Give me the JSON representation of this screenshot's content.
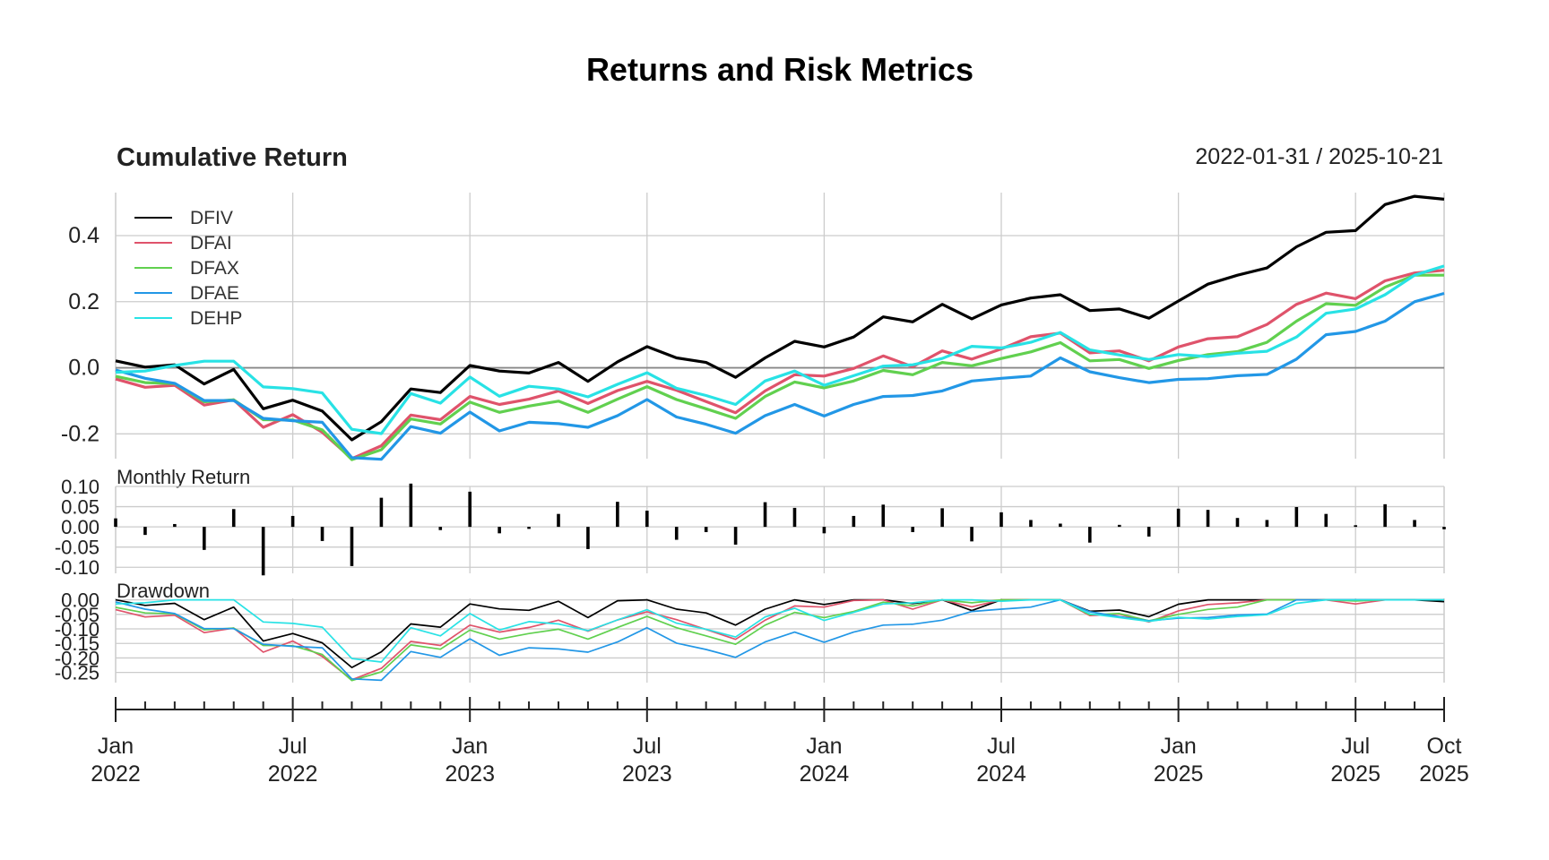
{
  "chart_data": {
    "type": "line",
    "title": "Returns and Risk Metrics",
    "date_range": "2022-01-31 / 2025-10-21",
    "x": [
      "2022-01",
      "2022-02",
      "2022-03",
      "2022-04",
      "2022-05",
      "2022-06",
      "2022-07",
      "2022-08",
      "2022-09",
      "2022-10",
      "2022-11",
      "2022-12",
      "2023-01",
      "2023-02",
      "2023-03",
      "2023-04",
      "2023-05",
      "2023-06",
      "2023-07",
      "2023-08",
      "2023-09",
      "2023-10",
      "2023-11",
      "2023-12",
      "2024-01",
      "2024-02",
      "2024-03",
      "2024-04",
      "2024-05",
      "2024-06",
      "2024-07",
      "2024-08",
      "2024-09",
      "2024-10",
      "2024-11",
      "2024-12",
      "2025-01",
      "2025-02",
      "2025-03",
      "2025-04",
      "2025-05",
      "2025-06",
      "2025-07",
      "2025-08",
      "2025-09",
      "2025-10"
    ],
    "x_tick_labels": [
      {
        "date": "2022-01",
        "month": "Jan",
        "year": "2022"
      },
      {
        "date": "2022-07",
        "month": "Jul",
        "year": "2022"
      },
      {
        "date": "2023-01",
        "month": "Jan",
        "year": "2023"
      },
      {
        "date": "2023-07",
        "month": "Jul",
        "year": "2023"
      },
      {
        "date": "2024-01",
        "month": "Jan",
        "year": "2024"
      },
      {
        "date": "2024-07",
        "month": "Jul",
        "year": "2024"
      },
      {
        "date": "2025-01",
        "month": "Jan",
        "year": "2025"
      },
      {
        "date": "2025-07",
        "month": "Jul",
        "year": "2025"
      },
      {
        "date": "2025-10",
        "month": "Oct",
        "year": "2025"
      }
    ],
    "legend_position": "top-left",
    "grid": true,
    "panels": [
      {
        "title": "Cumulative Return",
        "ylim": [
          -0.275,
          0.53
        ],
        "yticks": [
          -0.2,
          0.0,
          0.2,
          0.4
        ],
        "ytick_labels": [
          "-0.2",
          "0.0",
          "0.2",
          "0.4"
        ],
        "series": [
          {
            "name": "DFIV",
            "color": "#000000",
            "values": [
              0.021,
              0.002,
              0.009,
              -0.049,
              -0.005,
              -0.124,
              -0.098,
              -0.131,
              -0.218,
              -0.163,
              -0.064,
              -0.075,
              0.007,
              -0.01,
              -0.016,
              0.016,
              -0.041,
              0.018,
              0.064,
              0.03,
              0.016,
              -0.029,
              0.03,
              0.08,
              0.063,
              0.093,
              0.154,
              0.139,
              0.192,
              0.148,
              0.19,
              0.211,
              0.221,
              0.173,
              0.178,
              0.15,
              0.202,
              0.253,
              0.28,
              0.302,
              0.366,
              0.41,
              0.415,
              0.494,
              0.519,
              0.51
            ]
          },
          {
            "name": "DFAI",
            "color": "#DF536B",
            "values": [
              -0.034,
              -0.059,
              -0.053,
              -0.113,
              -0.097,
              -0.18,
              -0.142,
              -0.195,
              -0.275,
              -0.236,
              -0.143,
              -0.157,
              -0.087,
              -0.111,
              -0.095,
              -0.07,
              -0.108,
              -0.069,
              -0.041,
              -0.068,
              -0.102,
              -0.136,
              -0.07,
              -0.021,
              -0.025,
              -0.002,
              0.036,
              0.003,
              0.051,
              0.026,
              0.057,
              0.094,
              0.105,
              0.045,
              0.051,
              0.021,
              0.063,
              0.088,
              0.094,
              0.131,
              0.192,
              0.226,
              0.209,
              0.263,
              0.287,
              0.295
            ]
          },
          {
            "name": "DFAX",
            "color": "#61D04F",
            "values": [
              -0.026,
              -0.045,
              -0.048,
              -0.103,
              -0.097,
              -0.157,
              -0.158,
              -0.188,
              -0.278,
              -0.248,
              -0.155,
              -0.17,
              -0.104,
              -0.135,
              -0.116,
              -0.101,
              -0.135,
              -0.095,
              -0.057,
              -0.096,
              -0.124,
              -0.153,
              -0.087,
              -0.043,
              -0.061,
              -0.04,
              -0.008,
              -0.021,
              0.016,
              0.006,
              0.028,
              0.048,
              0.076,
              0.021,
              0.025,
              -0.002,
              0.022,
              0.04,
              0.049,
              0.077,
              0.141,
              0.194,
              0.189,
              0.244,
              0.28,
              0.28
            ]
          },
          {
            "name": "DFAE",
            "color": "#2297E6",
            "values": [
              -0.007,
              -0.032,
              -0.047,
              -0.099,
              -0.099,
              -0.153,
              -0.16,
              -0.165,
              -0.272,
              -0.277,
              -0.178,
              -0.198,
              -0.134,
              -0.191,
              -0.165,
              -0.169,
              -0.18,
              -0.145,
              -0.096,
              -0.149,
              -0.171,
              -0.198,
              -0.145,
              -0.111,
              -0.146,
              -0.111,
              -0.087,
              -0.084,
              -0.07,
              -0.04,
              -0.032,
              -0.025,
              0.03,
              -0.012,
              -0.03,
              -0.045,
              -0.035,
              -0.033,
              -0.024,
              -0.02,
              0.026,
              0.1,
              0.11,
              0.141,
              0.2,
              0.225
            ]
          },
          {
            "name": "DEHP",
            "color": "#28E2E5",
            "values": [
              -0.014,
              -0.01,
              0.007,
              0.02,
              0.02,
              -0.058,
              -0.063,
              -0.076,
              -0.186,
              -0.199,
              -0.078,
              -0.107,
              -0.028,
              -0.086,
              -0.056,
              -0.064,
              -0.088,
              -0.05,
              -0.015,
              -0.062,
              -0.084,
              -0.111,
              -0.04,
              -0.01,
              -0.053,
              -0.024,
              0.005,
              0.009,
              0.028,
              0.065,
              0.06,
              0.077,
              0.107,
              0.054,
              0.039,
              0.025,
              0.04,
              0.034,
              0.044,
              0.05,
              0.093,
              0.165,
              0.178,
              0.221,
              0.28,
              0.308
            ]
          }
        ]
      },
      {
        "title": "Monthly Return",
        "type": "bar",
        "ylim": [
          -0.115,
          0.1
        ],
        "yticks": [
          0.1,
          0.05,
          0.0,
          -0.05,
          -0.1
        ],
        "ytick_labels": [
          "0.10",
          "0.05",
          "0.00",
          "-0.05",
          "-0.10"
        ],
        "series": [
          {
            "name": "DFIV",
            "color": "#000000",
            "values": [
              0.021,
              -0.02,
              0.007,
              -0.057,
              0.044,
              -0.12,
              0.027,
              -0.035,
              -0.097,
              0.072,
              0.107,
              -0.008,
              0.087,
              -0.016,
              -0.005,
              0.032,
              -0.055,
              0.062,
              0.04,
              -0.032,
              -0.013,
              -0.044,
              0.061,
              0.047,
              -0.016,
              0.027,
              0.055,
              -0.013,
              0.046,
              -0.036,
              0.036,
              0.017,
              0.008,
              -0.039,
              0.005,
              -0.024,
              0.045,
              0.042,
              0.022,
              0.017,
              0.049,
              0.032,
              0.004,
              0.056,
              0.017,
              -0.006
            ]
          }
        ]
      },
      {
        "title": "Drawdown",
        "ylim": [
          -0.285,
          0.005
        ],
        "yticks": [
          0.0,
          -0.05,
          -0.1,
          -0.15,
          -0.2,
          -0.25
        ],
        "ytick_labels": [
          "0.00",
          "-0.05",
          "-0.10",
          "-0.15",
          "-0.20",
          "-0.25"
        ],
        "series": [
          {
            "name": "DFIV",
            "color": "#000000",
            "values": [
              0.0,
              -0.019,
              -0.012,
              -0.068,
              -0.025,
              -0.142,
              -0.116,
              -0.148,
              -0.233,
              -0.179,
              -0.083,
              -0.094,
              -0.014,
              -0.031,
              -0.036,
              -0.005,
              -0.061,
              -0.003,
              0.0,
              -0.032,
              -0.045,
              -0.087,
              -0.032,
              0.0,
              -0.016,
              0.0,
              0.0,
              -0.013,
              0.0,
              -0.037,
              0.0,
              0.0,
              0.0,
              -0.039,
              -0.035,
              -0.058,
              -0.015,
              0.0,
              0.0,
              0.0,
              0.0,
              0.0,
              0.0,
              0.0,
              0.0,
              -0.006
            ]
          },
          {
            "name": "DFAI",
            "color": "#DF536B",
            "values": [
              -0.034,
              -0.059,
              -0.053,
              -0.113,
              -0.097,
              -0.18,
              -0.142,
              -0.195,
              -0.275,
              -0.236,
              -0.143,
              -0.157,
              -0.087,
              -0.111,
              -0.095,
              -0.07,
              -0.108,
              -0.069,
              -0.041,
              -0.068,
              -0.102,
              -0.136,
              -0.07,
              -0.021,
              -0.025,
              -0.002,
              0.0,
              -0.032,
              0.0,
              -0.024,
              0.0,
              0.0,
              0.0,
              -0.054,
              -0.049,
              -0.076,
              -0.038,
              -0.016,
              -0.01,
              0.0,
              0.0,
              0.0,
              -0.014,
              0.0,
              0.0,
              0.0
            ]
          },
          {
            "name": "DFAX",
            "color": "#61D04F",
            "values": [
              -0.026,
              -0.045,
              -0.048,
              -0.103,
              -0.097,
              -0.157,
              -0.158,
              -0.188,
              -0.278,
              -0.248,
              -0.155,
              -0.17,
              -0.104,
              -0.135,
              -0.116,
              -0.101,
              -0.135,
              -0.095,
              -0.057,
              -0.096,
              -0.124,
              -0.153,
              -0.087,
              -0.043,
              -0.061,
              -0.04,
              -0.008,
              -0.021,
              0.0,
              -0.01,
              0.0,
              0.0,
              0.0,
              -0.051,
              -0.047,
              -0.072,
              -0.05,
              -0.033,
              -0.025,
              0.0,
              0.0,
              0.0,
              -0.004,
              0.0,
              0.0,
              0.0
            ]
          },
          {
            "name": "DFAE",
            "color": "#2297E6",
            "values": [
              -0.007,
              -0.032,
              -0.047,
              -0.099,
              -0.099,
              -0.153,
              -0.16,
              -0.165,
              -0.272,
              -0.277,
              -0.178,
              -0.198,
              -0.134,
              -0.191,
              -0.165,
              -0.169,
              -0.18,
              -0.145,
              -0.096,
              -0.149,
              -0.171,
              -0.198,
              -0.145,
              -0.111,
              -0.146,
              -0.111,
              -0.087,
              -0.084,
              -0.07,
              -0.04,
              -0.032,
              -0.025,
              0.0,
              -0.041,
              -0.058,
              -0.072,
              -0.063,
              -0.061,
              -0.052,
              -0.049,
              0.0,
              0.0,
              0.0,
              0.0,
              0.0,
              0.0
            ]
          },
          {
            "name": "DEHP",
            "color": "#28E2E5",
            "values": [
              -0.014,
              -0.01,
              0.0,
              0.0,
              0.0,
              -0.076,
              -0.081,
              -0.094,
              -0.202,
              -0.214,
              -0.096,
              -0.124,
              -0.047,
              -0.104,
              -0.075,
              -0.083,
              -0.106,
              -0.069,
              -0.034,
              -0.08,
              -0.101,
              -0.128,
              -0.059,
              -0.029,
              -0.071,
              -0.043,
              -0.014,
              -0.01,
              0.0,
              0.0,
              -0.005,
              0.0,
              0.0,
              -0.048,
              -0.061,
              -0.074,
              -0.06,
              -0.066,
              -0.057,
              -0.051,
              -0.012,
              0.0,
              0.0,
              0.0,
              0.0,
              0.0
            ]
          }
        ]
      }
    ]
  }
}
